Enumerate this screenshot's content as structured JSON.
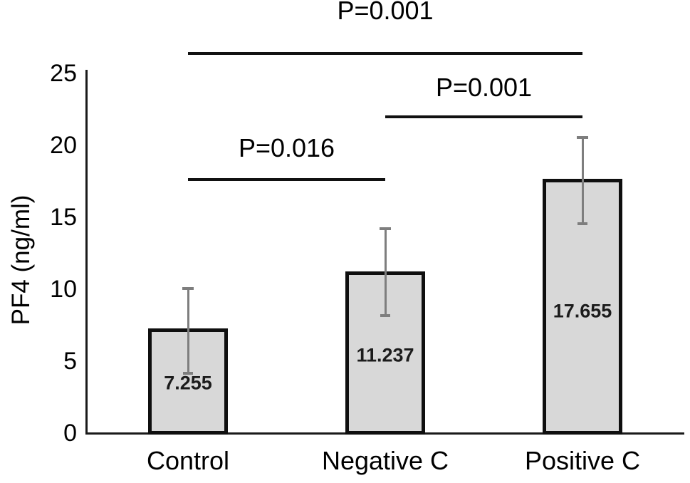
{
  "chart_data": {
    "type": "bar",
    "title": "",
    "xlabel": "",
    "ylabel": "PF4 (ng/ml)",
    "categories": [
      "Control",
      "Negative C",
      "Positive C"
    ],
    "values": [
      7.255,
      11.237,
      17.655
    ],
    "value_labels": [
      "7.255",
      "11.237",
      "17.655"
    ],
    "error_upper": [
      10.1,
      14.25,
      20.6
    ],
    "error_lower": [
      4.1,
      8.1,
      14.5
    ],
    "ylim": [
      0,
      25
    ],
    "yticks": [
      "0",
      "5",
      "10",
      "15",
      "20",
      "25"
    ],
    "grid": false,
    "legend": "none",
    "significance": [
      {
        "label": "P=0.001",
        "between": [
          "Control",
          "Positive C"
        ],
        "y_value": 26.4
      },
      {
        "label": "P=0.001",
        "between": [
          "Negative C",
          "Positive C"
        ],
        "y_value": 22.0
      },
      {
        "label": "P=0.016",
        "between": [
          "Control",
          "Negative C"
        ],
        "y_value": 17.6
      }
    ],
    "colors": {
      "bar_fill": "#d8d8d8",
      "bar_border": "#0f0f0f",
      "error_bar": "#7e7e7e",
      "axis": "#1a1a1a",
      "text": "#000000"
    }
  }
}
